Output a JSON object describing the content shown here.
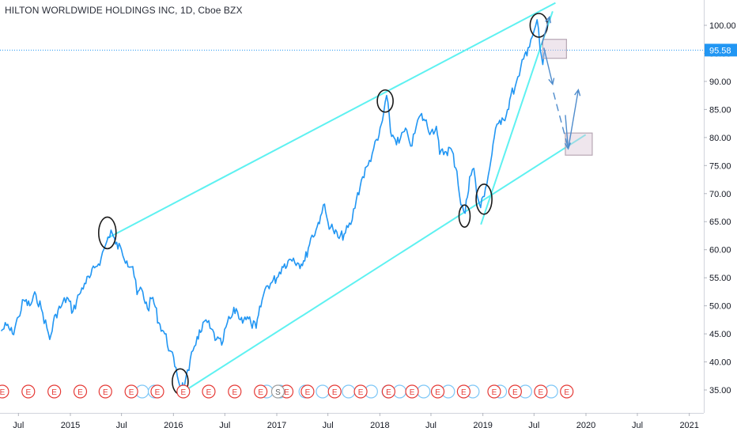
{
  "chart_data": {
    "type": "line",
    "title": "HILTON WORLDWIDE HOLDINGS INC, 1D, Cboe BZX",
    "xlabel": "",
    "ylabel": "",
    "ylim": [
      32,
      104
    ],
    "x_ticks": [
      {
        "label": "Jul",
        "x": "2014-07-01"
      },
      {
        "label": "2015",
        "x": "2015-01-01"
      },
      {
        "label": "Jul",
        "x": "2015-07-01"
      },
      {
        "label": "2016",
        "x": "2016-01-01"
      },
      {
        "label": "Jul",
        "x": "2016-07-01"
      },
      {
        "label": "2017",
        "x": "2017-01-01"
      },
      {
        "label": "Jul",
        "x": "2017-07-01"
      },
      {
        "label": "2018",
        "x": "2018-01-01"
      },
      {
        "label": "Jul",
        "x": "2018-07-01"
      },
      {
        "label": "2019",
        "x": "2019-01-01"
      },
      {
        "label": "Jul",
        "x": "2019-07-01"
      },
      {
        "label": "2020",
        "x": "2020-01-01"
      },
      {
        "label": "Jul",
        "x": "2020-07-01"
      },
      {
        "label": "2021",
        "x": "2021-01-01"
      }
    ],
    "y_ticks": [
      35,
      40,
      45,
      50,
      55,
      60,
      65,
      70,
      75,
      80,
      85,
      90,
      95,
      100
    ],
    "y_tick_labels": [
      "35.00",
      "40.00",
      "45.00",
      "50.00",
      "55.00",
      "60.00",
      "65.00",
      "70.00",
      "75.00",
      "80.00",
      "85.00",
      "90.00",
      "95.00",
      "100.00"
    ],
    "last_price": 95.58,
    "last_price_label": "95.58",
    "series": [
      {
        "color": "#2196f3",
        "points": [
          [
            "2014-05-01",
            45.5
          ],
          [
            "2014-05-20",
            46.5
          ],
          [
            "2014-06-10",
            45.0
          ],
          [
            "2014-07-01",
            48.0
          ],
          [
            "2014-07-20",
            51.0
          ],
          [
            "2014-08-10",
            50.0
          ],
          [
            "2014-09-01",
            52.0
          ],
          [
            "2014-09-20",
            49.5
          ],
          [
            "2014-10-10",
            46.0
          ],
          [
            "2014-10-20",
            44.0
          ],
          [
            "2014-11-10",
            48.5
          ],
          [
            "2014-12-01",
            50.0
          ],
          [
            "2014-12-20",
            51.5
          ],
          [
            "2015-01-10",
            49.0
          ],
          [
            "2015-02-01",
            52.0
          ],
          [
            "2015-02-20",
            54.0
          ],
          [
            "2015-03-10",
            55.0
          ],
          [
            "2015-04-01",
            57.0
          ],
          [
            "2015-04-20",
            58.5
          ],
          [
            "2015-05-10",
            61.5
          ],
          [
            "2015-05-25",
            63.5
          ],
          [
            "2015-06-10",
            61.0
          ],
          [
            "2015-07-01",
            60.0
          ],
          [
            "2015-07-20",
            58.0
          ],
          [
            "2015-08-10",
            57.0
          ],
          [
            "2015-08-25",
            52.0
          ],
          [
            "2015-09-10",
            53.0
          ],
          [
            "2015-10-01",
            49.5
          ],
          [
            "2015-10-20",
            51.5
          ],
          [
            "2015-11-10",
            47.0
          ],
          [
            "2015-12-01",
            45.0
          ],
          [
            "2015-12-20",
            42.0
          ],
          [
            "2016-01-10",
            39.0
          ],
          [
            "2016-01-25",
            35.5
          ],
          [
            "2016-02-10",
            36.0
          ],
          [
            "2016-02-25",
            38.5
          ],
          [
            "2016-03-10",
            42.0
          ],
          [
            "2016-03-25",
            44.5
          ],
          [
            "2016-04-10",
            45.5
          ],
          [
            "2016-04-25",
            47.5
          ],
          [
            "2016-05-10",
            46.0
          ],
          [
            "2016-06-01",
            44.0
          ],
          [
            "2016-06-20",
            43.0
          ],
          [
            "2016-07-10",
            47.0
          ],
          [
            "2016-07-25",
            48.0
          ],
          [
            "2016-08-10",
            49.5
          ],
          [
            "2016-08-25",
            47.5
          ],
          [
            "2016-09-10",
            48.0
          ],
          [
            "2016-10-01",
            47.0
          ],
          [
            "2016-10-20",
            46.0
          ],
          [
            "2016-11-10",
            51.0
          ],
          [
            "2016-11-25",
            53.5
          ],
          [
            "2016-12-10",
            54.0
          ],
          [
            "2017-01-01",
            55.0
          ],
          [
            "2017-01-20",
            57.0
          ],
          [
            "2017-02-10",
            58.0
          ],
          [
            "2017-03-01",
            58.5
          ],
          [
            "2017-03-20",
            57.5
          ],
          [
            "2017-04-10",
            58.0
          ],
          [
            "2017-05-01",
            62.0
          ],
          [
            "2017-05-20",
            63.5
          ],
          [
            "2017-06-05",
            66.0
          ],
          [
            "2017-06-15",
            68.0
          ],
          [
            "2017-07-01",
            65.0
          ],
          [
            "2017-07-20",
            63.5
          ],
          [
            "2017-08-10",
            62.0
          ],
          [
            "2017-09-01",
            63.0
          ],
          [
            "2017-09-20",
            64.5
          ],
          [
            "2017-10-10",
            69.0
          ],
          [
            "2017-11-01",
            73.0
          ],
          [
            "2017-11-20",
            75.0
          ],
          [
            "2017-12-10",
            78.0
          ],
          [
            "2017-12-25",
            79.5
          ],
          [
            "2018-01-10",
            83.0
          ],
          [
            "2018-01-25",
            87.5
          ],
          [
            "2018-02-08",
            81.0
          ],
          [
            "2018-02-20",
            80.0
          ],
          [
            "2018-03-10",
            79.0
          ],
          [
            "2018-03-25",
            81.0
          ],
          [
            "2018-04-10",
            80.5
          ],
          [
            "2018-04-25",
            78.5
          ],
          [
            "2018-05-10",
            82.0
          ],
          [
            "2018-05-25",
            84.0
          ],
          [
            "2018-06-10",
            83.0
          ],
          [
            "2018-07-01",
            81.0
          ],
          [
            "2018-07-20",
            82.0
          ],
          [
            "2018-08-01",
            77.0
          ],
          [
            "2018-08-20",
            77.5
          ],
          [
            "2018-09-10",
            78.0
          ],
          [
            "2018-10-01",
            74.0
          ],
          [
            "2018-10-15",
            68.0
          ],
          [
            "2018-10-30",
            66.5
          ],
          [
            "2018-11-15",
            73.0
          ],
          [
            "2018-11-30",
            74.5
          ],
          [
            "2018-12-10",
            70.0
          ],
          [
            "2018-12-24",
            67.5
          ],
          [
            "2019-01-10",
            71.0
          ],
          [
            "2019-01-25",
            74.5
          ],
          [
            "2019-02-10",
            80.0
          ],
          [
            "2019-02-25",
            82.5
          ],
          [
            "2019-03-10",
            83.5
          ],
          [
            "2019-03-25",
            84.0
          ],
          [
            "2019-04-10",
            87.5
          ],
          [
            "2019-04-25",
            89.0
          ],
          [
            "2019-05-10",
            91.0
          ],
          [
            "2019-05-25",
            94.0
          ],
          [
            "2019-06-10",
            96.0
          ],
          [
            "2019-06-20",
            97.5
          ],
          [
            "2019-07-01",
            99.0
          ],
          [
            "2019-07-12",
            101.0
          ],
          [
            "2019-07-22",
            96.0
          ],
          [
            "2019-08-01",
            93.0
          ],
          [
            "2019-08-10",
            95.58
          ]
        ]
      }
    ],
    "annotations": {
      "trend_lines_color": "#5ef1f1",
      "circle_color": "#1a1a1a",
      "box_color": "#b7a7b4",
      "arrow_color": "#4f8ccc",
      "earnings_label": "E",
      "split_label": "S",
      "earnings_color": "#e53935",
      "earnings_markers": [
        "2014-05-05",
        "2014-08-05",
        "2014-11-05",
        "2015-02-05",
        "2015-05-05",
        "2015-08-05",
        "2015-11-05",
        "2016-02-05",
        "2016-05-05",
        "2016-08-05",
        "2016-11-05",
        "2017-02-05",
        "2017-04-20",
        "2017-07-25",
        "2017-10-25",
        "2018-02-01",
        "2018-04-25",
        "2018-07-25",
        "2018-10-25",
        "2019-02-10",
        "2019-04-25",
        "2019-07-25",
        "2019-10-25"
      ],
      "dividend_markers": [
        "2015-09-01",
        "2015-10-15",
        "2016-11-15",
        "2017-01-01",
        "2017-04-01",
        "2017-06-01",
        "2017-09-01",
        "2017-11-20",
        "2018-01-20",
        "2018-03-01",
        "2018-05-25",
        "2018-08-20",
        "2018-11-15",
        "2019-02-20",
        "2019-05-20",
        "2019-08-20"
      ]
    }
  }
}
